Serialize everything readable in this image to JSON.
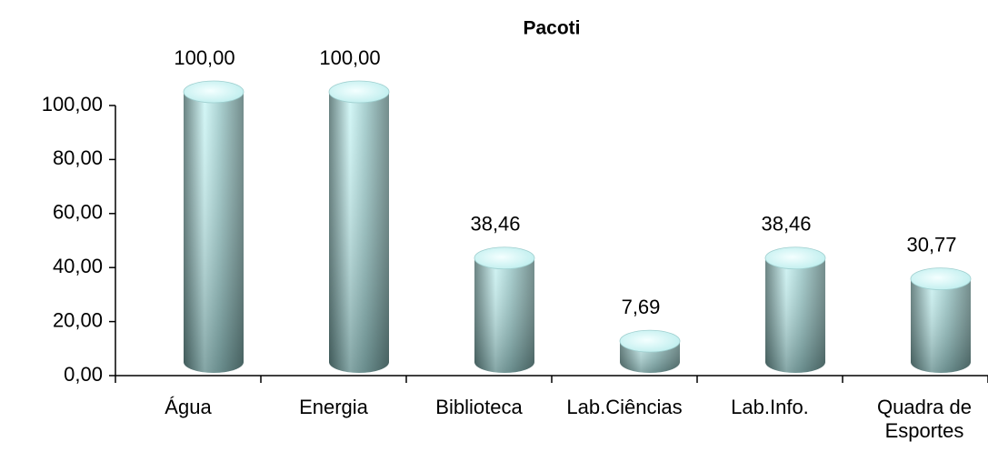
{
  "chart_data": {
    "type": "bar",
    "title": "Pacoti",
    "categories": [
      "Água",
      "Energia",
      "Biblioteca",
      "Lab.Ciências",
      "Lab.Info.",
      "Quadra de Esportes"
    ],
    "values": [
      100,
      100,
      38.46,
      7.69,
      38.46,
      30.77
    ],
    "value_labels": [
      "100,00",
      "100,00",
      "38,46",
      "7,69",
      "38,46",
      "30,77"
    ],
    "color": "#9fd6d6",
    "ylim": [
      0,
      100
    ],
    "yticks": [
      {
        "value": 0,
        "label": "0,00"
      },
      {
        "value": 20,
        "label": "20,00"
      },
      {
        "value": 40,
        "label": "40,00"
      },
      {
        "value": 60,
        "label": "60,00"
      },
      {
        "value": 80,
        "label": "80,00"
      },
      {
        "value": 100,
        "label": "100,00"
      }
    ]
  }
}
